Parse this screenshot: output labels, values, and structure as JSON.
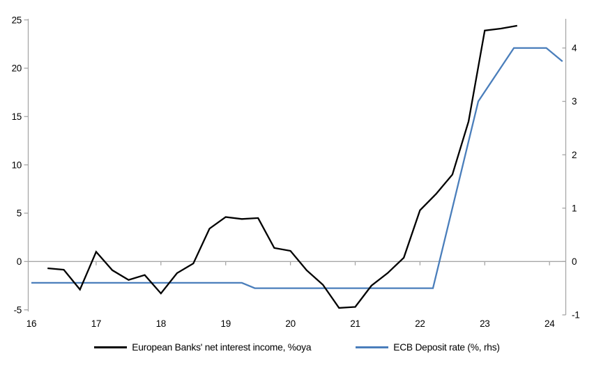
{
  "chart_data": {
    "type": "line",
    "title": "",
    "grid": false,
    "legend_position": "bottom",
    "x_axis": {
      "tick_labels": [
        "16",
        "17",
        "18",
        "19",
        "20",
        "21",
        "22",
        "23",
        "24"
      ],
      "tick_values": [
        16,
        17,
        18,
        19,
        20,
        21,
        22,
        23,
        24
      ],
      "range": [
        16,
        24.3
      ]
    },
    "y_axis_left": {
      "tick_values": [
        25,
        20,
        15,
        10,
        5,
        0,
        -5
      ],
      "range": [
        -5,
        25
      ]
    },
    "y_axis_right": {
      "tick_values": [
        4,
        3,
        2,
        1,
        0,
        -1
      ],
      "range": [
        -1,
        4.5
      ]
    },
    "series": [
      {
        "name": "European Banks' net interest income, %oya",
        "axis": "left",
        "color": "#000000",
        "points": [
          [
            16.25,
            -0.7
          ],
          [
            16.5,
            -0.85
          ],
          [
            16.75,
            -2.9
          ],
          [
            17.0,
            1.0
          ],
          [
            17.25,
            -0.9
          ],
          [
            17.5,
            -1.9
          ],
          [
            17.75,
            -1.4
          ],
          [
            18.0,
            -3.3
          ],
          [
            18.25,
            -1.2
          ],
          [
            18.5,
            -0.2
          ],
          [
            18.75,
            3.4
          ],
          [
            19.0,
            4.6
          ],
          [
            19.25,
            4.4
          ],
          [
            19.5,
            4.5
          ],
          [
            19.75,
            1.4
          ],
          [
            20.0,
            1.1
          ],
          [
            20.25,
            -0.9
          ],
          [
            20.5,
            -2.4
          ],
          [
            20.75,
            -4.8
          ],
          [
            21.0,
            -4.7
          ],
          [
            21.25,
            -2.5
          ],
          [
            21.5,
            -1.2
          ],
          [
            21.75,
            0.4
          ],
          [
            22.0,
            5.3
          ],
          [
            22.25,
            7.0
          ],
          [
            22.5,
            9.0
          ],
          [
            22.75,
            14.5
          ],
          [
            23.0,
            23.9
          ],
          [
            23.25,
            24.1
          ],
          [
            23.5,
            24.4
          ]
        ]
      },
      {
        "name": "ECB Deposit rate (%, rhs)",
        "axis": "right",
        "color": "#4A7EBB",
        "points": [
          [
            16.0,
            -0.4
          ],
          [
            19.25,
            -0.4
          ],
          [
            19.45,
            -0.5
          ],
          [
            22.2,
            -0.5
          ],
          [
            22.9,
            3.0
          ],
          [
            23.45,
            4.0
          ],
          [
            23.95,
            4.0
          ],
          [
            24.2,
            3.75
          ]
        ]
      }
    ]
  },
  "colors": {
    "axis": "#A6A6A6",
    "background": "#FFFFFF"
  }
}
